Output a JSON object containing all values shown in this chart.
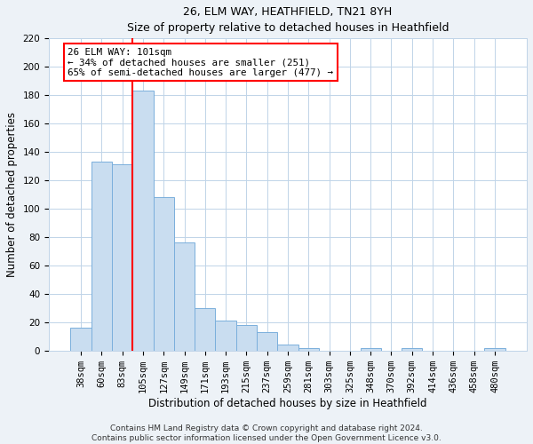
{
  "title": "26, ELM WAY, HEATHFIELD, TN21 8YH",
  "subtitle": "Size of property relative to detached houses in Heathfield",
  "xlabel": "Distribution of detached houses by size in Heathfield",
  "ylabel": "Number of detached properties",
  "bar_labels": [
    "38sqm",
    "60sqm",
    "83sqm",
    "105sqm",
    "127sqm",
    "149sqm",
    "171sqm",
    "193sqm",
    "215sqm",
    "237sqm",
    "259sqm",
    "281sqm",
    "303sqm",
    "325sqm",
    "348sqm",
    "370sqm",
    "392sqm",
    "414sqm",
    "436sqm",
    "458sqm",
    "480sqm"
  ],
  "bar_values": [
    16,
    133,
    131,
    183,
    108,
    76,
    30,
    21,
    18,
    13,
    4,
    2,
    0,
    0,
    2,
    0,
    2,
    0,
    0,
    0,
    2
  ],
  "bar_color": "#c9ddf0",
  "bar_edge_color": "#7aafdc",
  "ylim": [
    0,
    220
  ],
  "yticks": [
    0,
    20,
    40,
    60,
    80,
    100,
    120,
    140,
    160,
    180,
    200,
    220
  ],
  "vline_position": 3,
  "vline_color": "red",
  "annotation_lines": [
    "26 ELM WAY: 101sqm",
    "← 34% of detached houses are smaller (251)",
    "65% of semi-detached houses are larger (477) →"
  ],
  "footer_line1": "Contains HM Land Registry data © Crown copyright and database right 2024.",
  "footer_line2": "Contains public sector information licensed under the Open Government Licence v3.0.",
  "bg_color": "#edf2f7",
  "plot_bg_color": "#ffffff",
  "grid_color": "#c0d4e8",
  "title_fontsize": 9,
  "subtitle_fontsize": 9,
  "axis_label_fontsize": 8.5,
  "tick_fontsize": 7.5,
  "footer_fontsize": 6.5
}
